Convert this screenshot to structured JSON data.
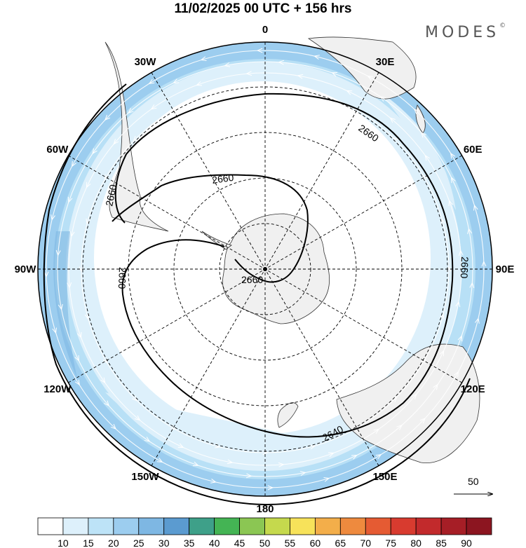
{
  "title": "11/02/2025  00 UTC  + 156 hrs",
  "brand": {
    "name": "MODES",
    "mark": "©"
  },
  "map": {
    "projection": "south-polar-stereographic",
    "longitude_labels": [
      {
        "text": "0",
        "lon": 0
      },
      {
        "text": "30E",
        "lon": 30
      },
      {
        "text": "60E",
        "lon": 60
      },
      {
        "text": "90E",
        "lon": 90
      },
      {
        "text": "120E",
        "lon": 120
      },
      {
        "text": "150E",
        "lon": 150
      },
      {
        "text": "180",
        "lon": 180
      },
      {
        "text": "150W",
        "lon": -150
      },
      {
        "text": "120W",
        "lon": -120
      },
      {
        "text": "90W",
        "lon": -90
      },
      {
        "text": "60W",
        "lon": -60
      },
      {
        "text": "30W",
        "lon": -30
      }
    ],
    "contour_labels": [
      "2660",
      "2660",
      "2660",
      "2660",
      "2660",
      "2660",
      "2640"
    ],
    "reference_vector": {
      "label": "50",
      "icon": "arrow-right-icon"
    }
  },
  "colorbar": {
    "ticks": [
      "10",
      "15",
      "20",
      "25",
      "30",
      "35",
      "40",
      "45",
      "50",
      "55",
      "60",
      "65",
      "70",
      "75",
      "80",
      "85",
      "90"
    ],
    "colors": [
      "#ffffff",
      "#ddf0fb",
      "#bde3f7",
      "#9ccdef",
      "#7eb7e3",
      "#5b9bd0",
      "#3ea089",
      "#44b454",
      "#8bc653",
      "#c5d94d",
      "#f7e25a",
      "#f3ae4a",
      "#ee8a3e",
      "#e55b33",
      "#d83b2f",
      "#c22a2c",
      "#a61e26",
      "#8c1520"
    ]
  }
}
